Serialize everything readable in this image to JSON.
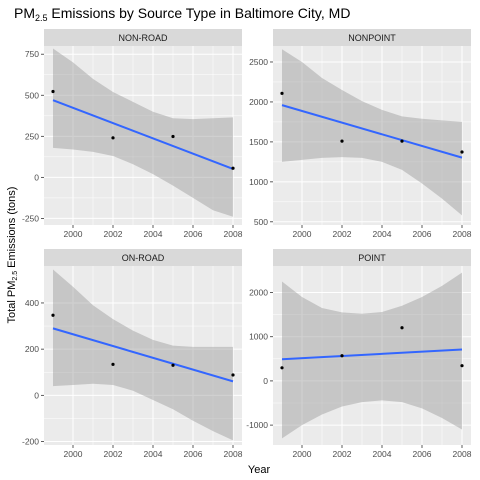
{
  "chart_data": {
    "type": "scatter",
    "title_main": "PM",
    "title_sub": "2.5",
    "title_rest": " Emissions by Source Type in Baltimore City, MD",
    "xlabel": "Year",
    "ylabel_main": "Total PM",
    "ylabel_sub": "2.5",
    "ylabel_rest": " Emissions (tons)",
    "colors": {
      "panel_bg": "#ebebeb",
      "grid": "#ffffff",
      "strip_bg": "#d9d9d9",
      "ribbon": "#999999",
      "line": "#3366ff",
      "point": "#000000"
    },
    "panels": [
      {
        "name": "NON-ROAD",
        "x": [
          1999,
          2002,
          2005,
          2008
        ],
        "y": [
          522.94,
          240.85,
          248.93,
          55.82
        ],
        "xlim": [
          1998.55,
          2008.45
        ],
        "ylim": [
          -290,
          800
        ],
        "xticks": [
          2000,
          2002,
          2004,
          2006,
          2008
        ],
        "yticks": [
          -250,
          0,
          250,
          500,
          750
        ],
        "fit": {
          "intercept_at_1999": 470,
          "slope": -46.5
        },
        "ribbon": [
          [
            1999,
            180,
            785
          ],
          [
            2000,
            170,
            700
          ],
          [
            2001,
            155,
            600
          ],
          [
            2002,
            130,
            520
          ],
          [
            2003,
            80,
            460
          ],
          [
            2004,
            20,
            400
          ],
          [
            2005,
            -50,
            360
          ],
          [
            2006,
            -125,
            355
          ],
          [
            2007,
            -200,
            360
          ],
          [
            2008,
            -240,
            365
          ]
        ]
      },
      {
        "name": "NONPOINT",
        "x": [
          1999,
          2002,
          2005,
          2008
        ],
        "y": [
          2107.63,
          1509.5,
          1509.5,
          1373.21
        ],
        "xlim": [
          1998.55,
          2008.45
        ],
        "ylim": [
          460,
          2700
        ],
        "xticks": [
          2000,
          2002,
          2004,
          2006,
          2008
        ],
        "yticks": [
          500,
          1000,
          1500,
          2000,
          2500
        ],
        "fit": {
          "intercept_at_1999": 1960,
          "slope": -73
        },
        "ribbon": [
          [
            1999,
            1250,
            2660
          ],
          [
            2000,
            1275,
            2500
          ],
          [
            2001,
            1300,
            2300
          ],
          [
            2002,
            1310,
            2150
          ],
          [
            2003,
            1300,
            2010
          ],
          [
            2004,
            1250,
            1900
          ],
          [
            2005,
            1150,
            1820
          ],
          [
            2006,
            980,
            1790
          ],
          [
            2007,
            790,
            1770
          ],
          [
            2008,
            580,
            1750
          ]
        ]
      },
      {
        "name": "ON-ROAD",
        "x": [
          1999,
          2002,
          2005,
          2008
        ],
        "y": [
          346.82,
          134.31,
          130.43,
          88.28
        ],
        "xlim": [
          1998.55,
          2008.45
        ],
        "ylim": [
          -215,
          560
        ],
        "xticks": [
          2000,
          2002,
          2004,
          2006,
          2008
        ],
        "yticks": [
          -200,
          0,
          200,
          400
        ],
        "fit": {
          "intercept_at_1999": 290,
          "slope": -25.5
        },
        "ribbon": [
          [
            1999,
            40,
            545
          ],
          [
            2000,
            45,
            470
          ],
          [
            2001,
            50,
            390
          ],
          [
            2002,
            45,
            330
          ],
          [
            2003,
            20,
            280
          ],
          [
            2004,
            -20,
            240
          ],
          [
            2005,
            -60,
            215
          ],
          [
            2006,
            -110,
            210
          ],
          [
            2007,
            -155,
            210
          ],
          [
            2008,
            -195,
            210
          ]
        ]
      },
      {
        "name": "POINT",
        "x": [
          1999,
          2002,
          2005,
          2008
        ],
        "y": [
          296.8,
          569.26,
          1202.49,
          344.98
        ],
        "xlim": [
          1998.55,
          2008.45
        ],
        "ylim": [
          -1450,
          2600
        ],
        "xticks": [
          2000,
          2002,
          2004,
          2006,
          2008
        ],
        "yticks": [
          -1000,
          0,
          1000,
          2000
        ],
        "fit": {
          "intercept_at_1999": 490,
          "slope": 24.5
        },
        "ribbon": [
          [
            1999,
            -1300,
            2250
          ],
          [
            2000,
            -1000,
            1900
          ],
          [
            2001,
            -760,
            1650
          ],
          [
            2002,
            -580,
            1550
          ],
          [
            2003,
            -480,
            1520
          ],
          [
            2004,
            -440,
            1560
          ],
          [
            2005,
            -480,
            1700
          ],
          [
            2006,
            -620,
            1900
          ],
          [
            2007,
            -840,
            2150
          ],
          [
            2008,
            -1100,
            2450
          ]
        ]
      }
    ]
  }
}
